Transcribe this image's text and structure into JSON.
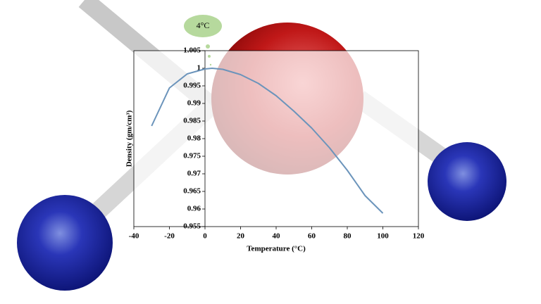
{
  "chart_data": {
    "type": "line",
    "x_label": "Temperature (°C)",
    "y_label": "Density (gm/cm³)",
    "annotation": "4°C",
    "x": [
      -30,
      -20,
      -10,
      0,
      4,
      10,
      20,
      30,
      40,
      50,
      60,
      70,
      80,
      90,
      100
    ],
    "series": [
      {
        "color": "#6b94bb",
        "values": [
          0.9836,
          0.9944,
          0.9984,
          0.9998,
          1.0,
          0.9997,
          0.9982,
          0.9957,
          0.9922,
          0.9878,
          0.983,
          0.9774,
          0.971,
          0.9638,
          0.9588
        ]
      }
    ],
    "xlim": [
      -40,
      120
    ],
    "xticks": [
      -40,
      -20,
      0,
      20,
      40,
      60,
      80,
      100,
      120
    ],
    "ylim": [
      0.955,
      1.005
    ],
    "yticks": [
      0.955,
      0.96,
      0.965,
      0.97,
      0.975,
      0.98,
      0.985,
      0.99,
      0.995,
      1,
      1.005
    ],
    "grid": false
  }
}
